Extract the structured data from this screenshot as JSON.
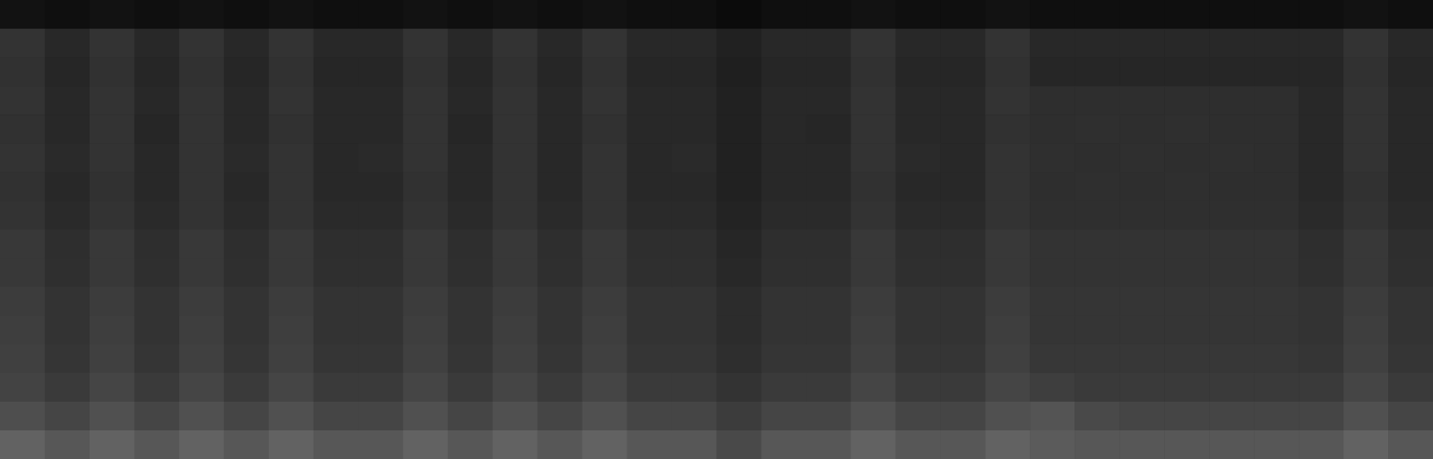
{
  "chart_data": {
    "type": "heatmap",
    "tick_labels": false,
    "zlim": [
      0,
      140
    ],
    "cells": [
      [
        10,
        8,
        10,
        8,
        10,
        8,
        10,
        8,
        8,
        10,
        8,
        10,
        8,
        10,
        8,
        8,
        6,
        8,
        8,
        10,
        8,
        8,
        10,
        8,
        8,
        8,
        8,
        8,
        8,
        8,
        10,
        8
      ],
      [
        28,
        22,
        28,
        22,
        28,
        22,
        28,
        22,
        22,
        28,
        22,
        28,
        22,
        28,
        22,
        22,
        18,
        22,
        22,
        28,
        22,
        22,
        28,
        22,
        22,
        22,
        22,
        22,
        22,
        22,
        28,
        22
      ],
      [
        27,
        21,
        27,
        21,
        27,
        21,
        27,
        21,
        21,
        27,
        21,
        27,
        21,
        27,
        21,
        21,
        17,
        21,
        21,
        27,
        21,
        21,
        27,
        21,
        21,
        21,
        21,
        21,
        21,
        21,
        27,
        21
      ],
      [
        28,
        22,
        28,
        22,
        28,
        22,
        28,
        22,
        22,
        28,
        22,
        28,
        22,
        28,
        22,
        22,
        18,
        22,
        22,
        28,
        22,
        22,
        28,
        25,
        25,
        25,
        25,
        25,
        25,
        22,
        28,
        22
      ],
      [
        27,
        22,
        28,
        21,
        28,
        22,
        27,
        22,
        22,
        28,
        21,
        28,
        22,
        27,
        22,
        22,
        18,
        22,
        21,
        28,
        22,
        22,
        27,
        25,
        26,
        25,
        26,
        25,
        25,
        22,
        28,
        22
      ],
      [
        28,
        23,
        28,
        22,
        28,
        23,
        28,
        22,
        23,
        28,
        22,
        28,
        22,
        28,
        22,
        23,
        18,
        22,
        22,
        28,
        23,
        22,
        28,
        26,
        25,
        26,
        25,
        26,
        25,
        22,
        28,
        22
      ],
      [
        27,
        22,
        27,
        22,
        28,
        22,
        28,
        22,
        22,
        27,
        22,
        28,
        22,
        28,
        22,
        22,
        18,
        22,
        22,
        27,
        22,
        22,
        28,
        25,
        26,
        25,
        26,
        25,
        25,
        22,
        27,
        22
      ],
      [
        28,
        23,
        28,
        23,
        28,
        23,
        28,
        23,
        23,
        28,
        23,
        28,
        23,
        28,
        23,
        23,
        19,
        23,
        23,
        28,
        23,
        23,
        28,
        26,
        26,
        26,
        26,
        26,
        26,
        23,
        28,
        23
      ],
      [
        31,
        25,
        31,
        25,
        31,
        25,
        31,
        25,
        25,
        31,
        25,
        31,
        25,
        31,
        25,
        25,
        21,
        25,
        25,
        31,
        25,
        25,
        31,
        28,
        28,
        28,
        28,
        28,
        28,
        25,
        31,
        25
      ],
      [
        31,
        26,
        31,
        26,
        31,
        26,
        31,
        26,
        26,
        31,
        26,
        31,
        26,
        31,
        26,
        26,
        22,
        26,
        26,
        31,
        26,
        26,
        31,
        28,
        28,
        28,
        28,
        28,
        28,
        26,
        31,
        26
      ],
      [
        33,
        28,
        33,
        28,
        33,
        28,
        33,
        28,
        28,
        33,
        28,
        33,
        28,
        33,
        28,
        28,
        24,
        28,
        28,
        33,
        28,
        28,
        33,
        29,
        29,
        29,
        29,
        29,
        29,
        28,
        33,
        28
      ],
      [
        34,
        28,
        34,
        28,
        34,
        28,
        34,
        28,
        28,
        34,
        28,
        34,
        28,
        34,
        28,
        28,
        24,
        28,
        28,
        34,
        28,
        28,
        34,
        29,
        29,
        29,
        29,
        29,
        29,
        28,
        34,
        28
      ],
      [
        35,
        29,
        35,
        29,
        35,
        29,
        35,
        29,
        29,
        35,
        29,
        35,
        29,
        35,
        29,
        29,
        25,
        29,
        29,
        35,
        29,
        29,
        35,
        30,
        30,
        30,
        30,
        30,
        30,
        29,
        35,
        29
      ],
      [
        37,
        32,
        38,
        32,
        38,
        32,
        38,
        32,
        32,
        38,
        32,
        38,
        32,
        38,
        32,
        32,
        28,
        32,
        32,
        38,
        32,
        32,
        38,
        34,
        32,
        32,
        32,
        32,
        32,
        32,
        38,
        32
      ],
      [
        43,
        38,
        44,
        38,
        44,
        38,
        44,
        38,
        38,
        44,
        38,
        44,
        38,
        44,
        38,
        38,
        33,
        38,
        38,
        44,
        38,
        38,
        44,
        46,
        40,
        38,
        38,
        38,
        38,
        38,
        44,
        38
      ],
      [
        54,
        48,
        54,
        48,
        54,
        48,
        54,
        48,
        48,
        54,
        48,
        54,
        48,
        54,
        48,
        48,
        40,
        48,
        48,
        54,
        48,
        48,
        54,
        50,
        48,
        48,
        48,
        48,
        48,
        48,
        54,
        48
      ]
    ]
  }
}
